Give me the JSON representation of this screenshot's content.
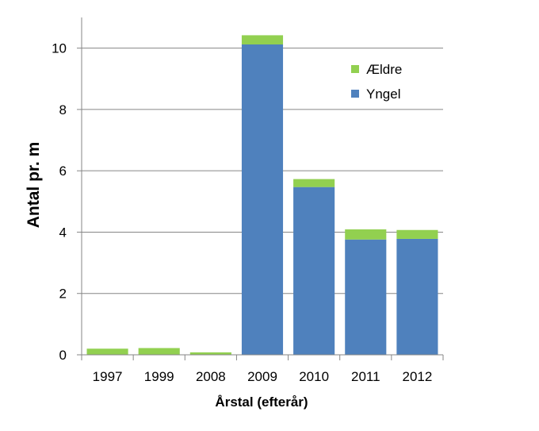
{
  "chart_data": {
    "type": "bar",
    "stacked": true,
    "categories": [
      "1997",
      "1999",
      "2008",
      "2009",
      "2010",
      "2011",
      "2012"
    ],
    "series": [
      {
        "name": "Yngel",
        "color": "#4f81bd",
        "values": [
          0,
          0,
          0,
          10.12,
          5.47,
          3.76,
          3.78
        ]
      },
      {
        "name": "Ældre",
        "color": "#92d050",
        "values": [
          0.2,
          0.22,
          0.08,
          0.3,
          0.26,
          0.33,
          0.29
        ]
      }
    ],
    "title": "",
    "xlabel": "Årstal (efterår)",
    "ylabel": "Antal pr. m",
    "ylim": [
      0,
      11
    ],
    "yticks": [
      0,
      2,
      4,
      6,
      8,
      10
    ],
    "grid": true,
    "legend_position": "top-right",
    "legend_order": [
      "Ældre",
      "Yngel"
    ]
  }
}
